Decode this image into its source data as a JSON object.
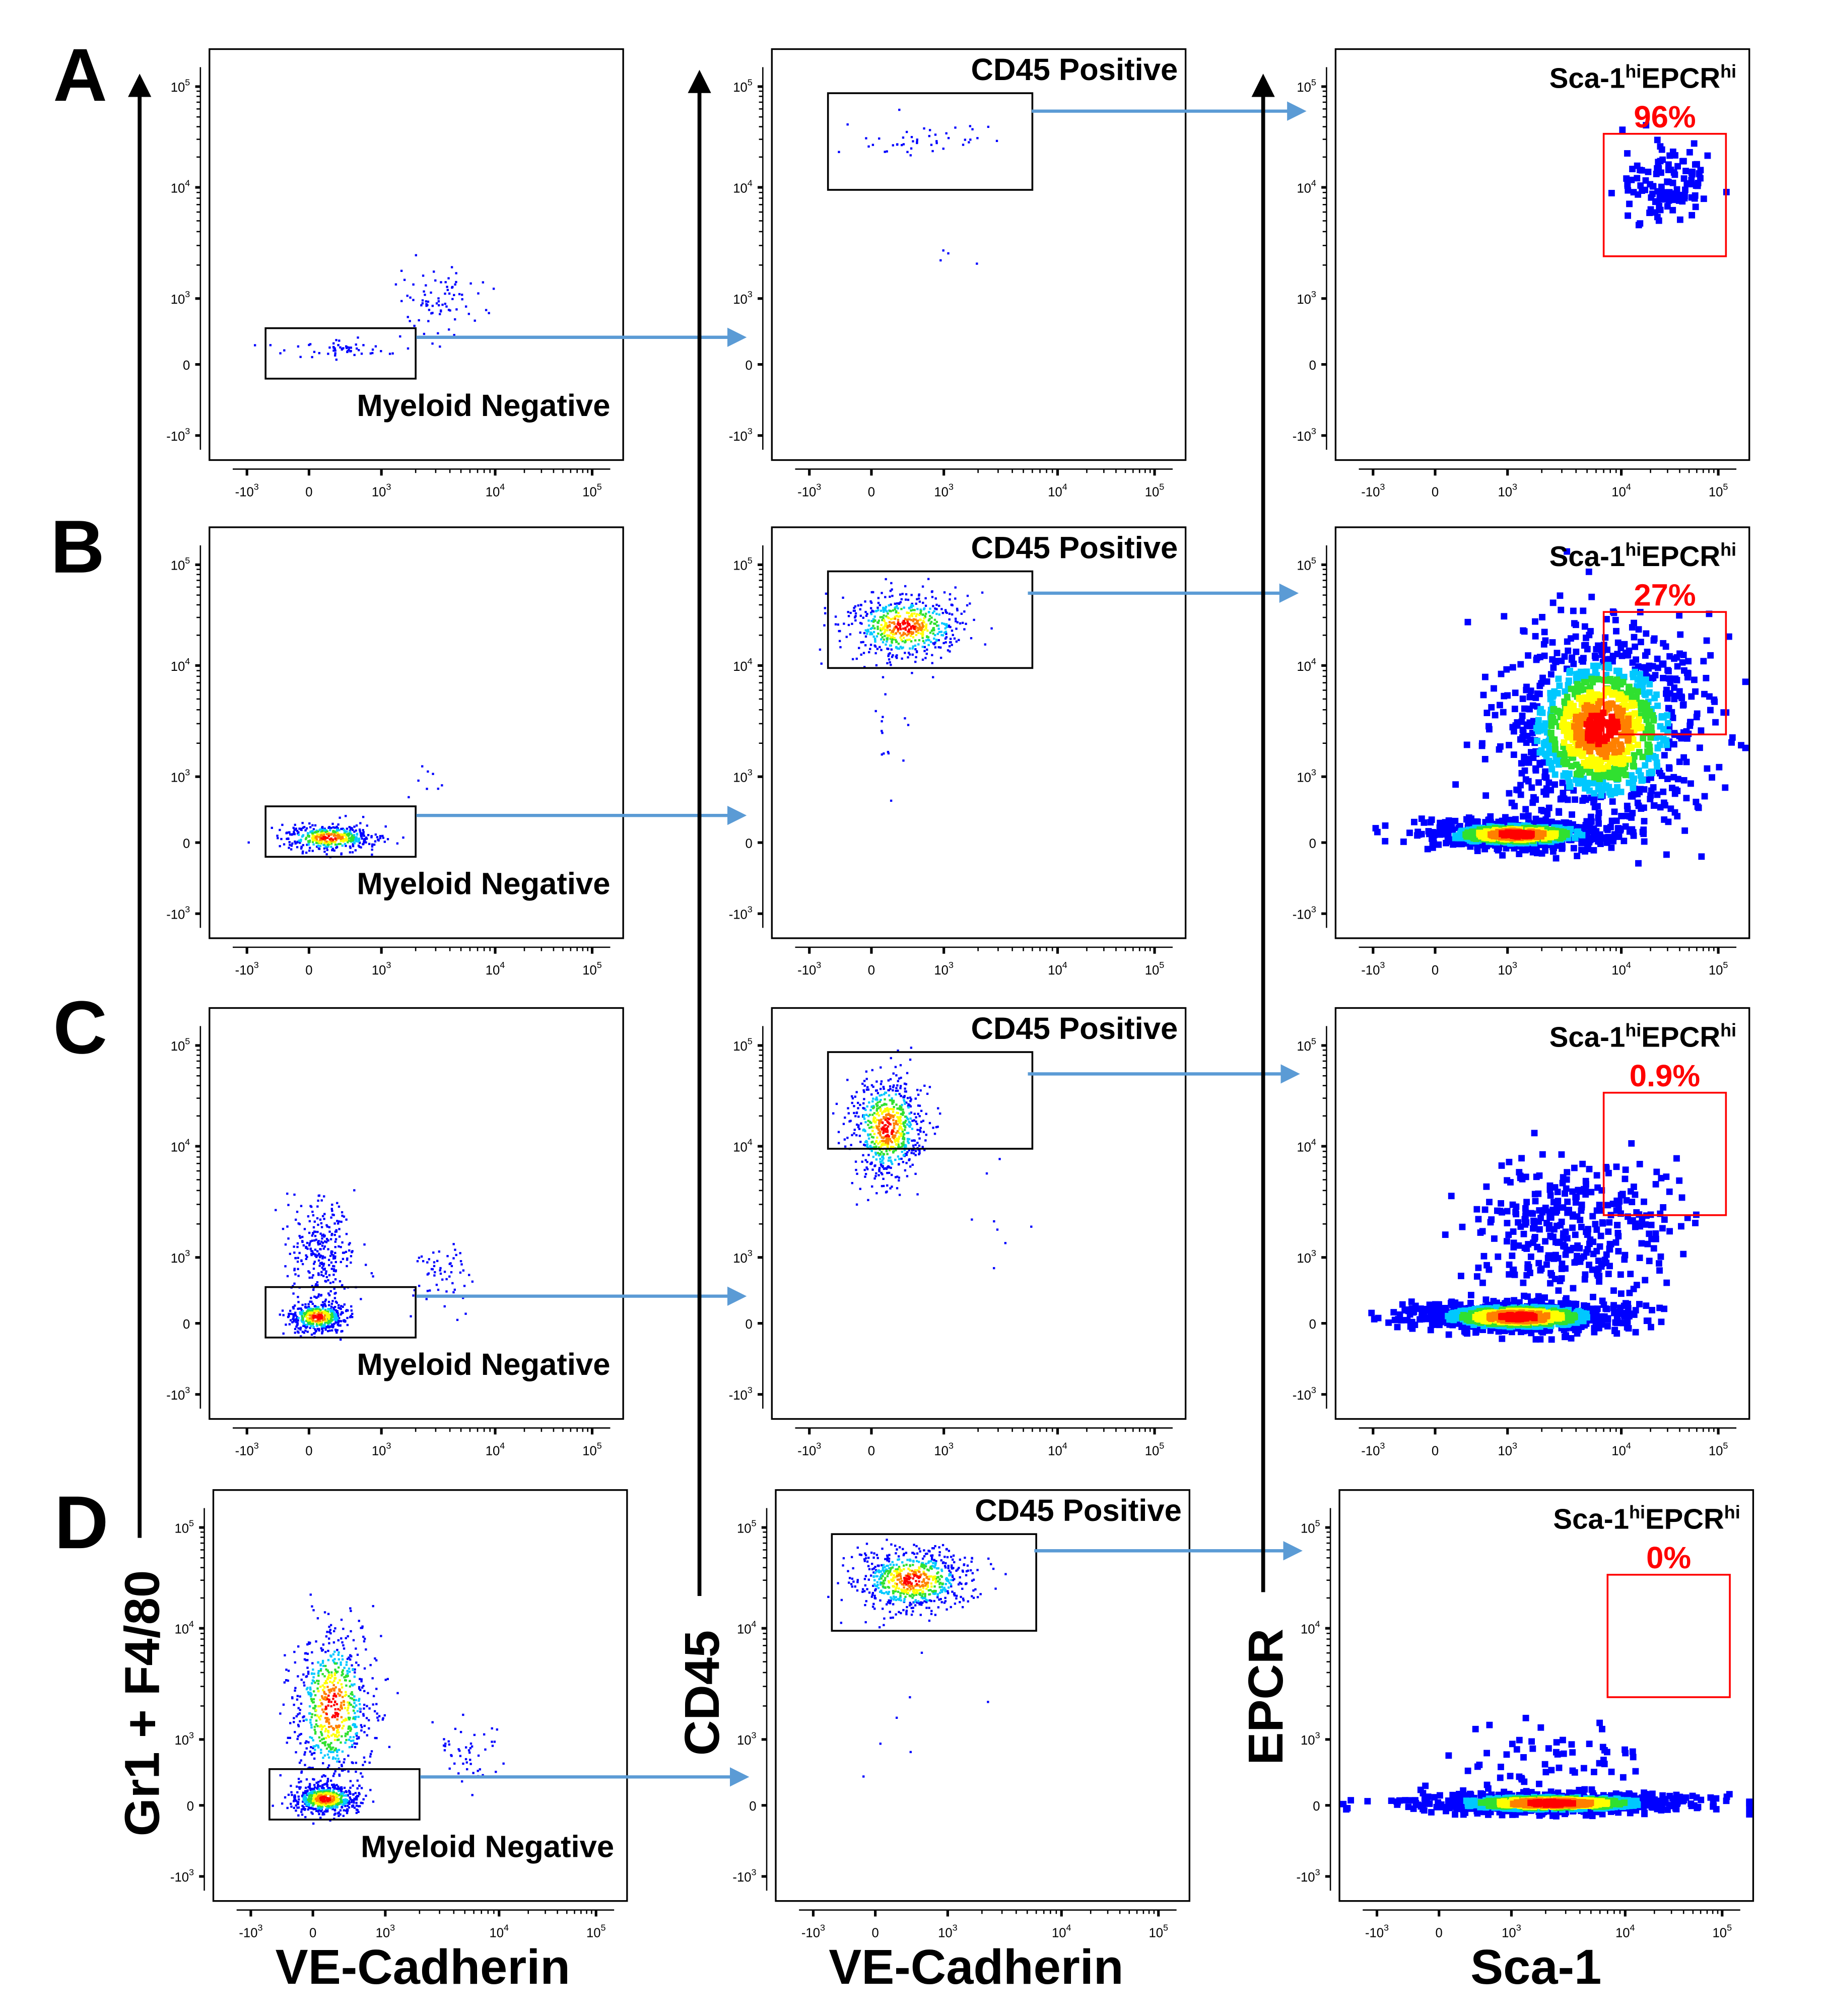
{
  "chart_data": {
    "type": "scatter",
    "row_labels": [
      "A",
      "B",
      "C",
      "D"
    ],
    "axis_titles": {
      "col1_y": "Gr1 + F4/80",
      "col2_y": "CD45",
      "col3_y": "EPCR",
      "col1_x": "VE-Cadherin",
      "col2_x": "VE-Cadherin",
      "col3_x": "Sca-1"
    },
    "scale": "biexponential",
    "x_ticks": [
      {
        "v": -1000,
        "base": "-10",
        "exp": "3"
      },
      {
        "v": 0,
        "base": "0",
        "exp": ""
      },
      {
        "v": 1000,
        "base": "10",
        "exp": "3"
      },
      {
        "v": 10000,
        "base": "10",
        "exp": "4"
      },
      {
        "v": 100000,
        "base": "10",
        "exp": "5"
      }
    ],
    "y_ticks": [
      {
        "v": 100000,
        "base": "10",
        "exp": "5"
      },
      {
        "v": 10000,
        "base": "10",
        "exp": "4"
      },
      {
        "v": 1000,
        "base": "10",
        "exp": "3"
      },
      {
        "v": 0,
        "base": "0",
        "exp": ""
      },
      {
        "v": -1000,
        "base": "-10",
        "exp": "3"
      }
    ],
    "gate_labels": {
      "col1": "Myeloid Negative",
      "col2": "CD45 Positive",
      "col3_parts": [
        "Sca-1",
        "hi",
        "EPCR",
        "hi"
      ]
    },
    "colors": {
      "gate_col1": "#000000",
      "gate_col2": "#000000",
      "gate_col3": "#ff0000",
      "arrow": "#5b9bd5",
      "percent": "#ff0000",
      "density": [
        "#0000ff",
        "#00c8ff",
        "#30e030",
        "#ffff00",
        "#ff8000",
        "#ff0000"
      ]
    },
    "rows": [
      {
        "label": "A",
        "panels": [
          {
            "gate": {
              "x": [
                -700,
                2000
              ],
              "y": [
                -200,
                550
              ]
            },
            "populations": [
              {
                "x_range": [
                  -500,
                  1800
                ],
                "y_range": [
                  100,
                  350
                ],
                "n": 55,
                "dense": false
              },
              {
                "x_range": [
                  1500,
                  7000
                ],
                "y_range": [
                  400,
                  1800
                ],
                "n": 80,
                "dense": false
              }
            ]
          },
          {
            "gate": {
              "x": [
                -700,
                6000
              ],
              "y": [
                9500,
                86000
              ]
            },
            "populations": [
              {
                "x_range": [
                  -400,
                  3000
                ],
                "y_range": [
                  20000,
                  45000
                ],
                "n": 45,
                "dense": false
              },
              {
                "x_range": [
                  500,
                  3000
                ],
                "y_range": [
                  2000,
                  4000
                ],
                "n": 4,
                "dense": false
              }
            ]
          },
          {
            "gate": {
              "x": [
                7000,
                120000
              ],
              "y": [
                2400,
                34000
              ]
            },
            "percent": "96%",
            "populations": [
              {
                "x_range": [
                  10000,
                  80000
                ],
                "y_range": [
                  5000,
                  25000
                ],
                "n": 120,
                "dense": false
              }
            ]
          }
        ]
      },
      {
        "label": "B",
        "panels": [
          {
            "gate": {
              "x": [
                -700,
                2000
              ],
              "y": [
                -200,
                550
              ]
            },
            "populations": [
              {
                "x_range": [
                  -400,
                  900
                ],
                "y_range": [
                  -100,
                  250
                ],
                "n": 450,
                "dense": true
              },
              {
                "x_range": [
                  1500,
                  5000
                ],
                "y_range": [
                  500,
                  2000
                ],
                "n": 8,
                "dense": false
              }
            ]
          },
          {
            "gate": {
              "x": [
                -700,
                6000
              ],
              "y": [
                9500,
                86000
              ]
            },
            "populations": [
              {
                "x_range": [
                  -400,
                  1500
                ],
                "y_range": [
                  12000,
                  50000
                ],
                "n": 600,
                "dense": true
              },
              {
                "x_range": [
                  0,
                  600
                ],
                "y_range": [
                  1200,
                  8000
                ],
                "n": 15,
                "dense": false
              }
            ]
          },
          {
            "gate": {
              "x": [
                7000,
                120000
              ],
              "y": [
                2400,
                34000
              ]
            },
            "percent": "27%",
            "populations": [
              {
                "x_range": [
                  -200,
                  8000
                ],
                "y_range": [
                  -50,
                  300
                ],
                "n": 700,
                "dense": true
              },
              {
                "x_range": [
                  1000,
                  60000
                ],
                "y_range": [
                  300,
                  20000
                ],
                "n": 1100,
                "dense": true
              }
            ]
          }
        ]
      },
      {
        "label": "C",
        "panels": [
          {
            "gate": {
              "x": [
                -700,
                2000
              ],
              "y": [
                -200,
                550
              ]
            },
            "populations": [
              {
                "x_range": [
                  -300,
                  500
                ],
                "y_range": [
                  -100,
                  300
                ],
                "n": 500,
                "dense": true
              },
              {
                "x_range": [
                  -300,
                  600
                ],
                "y_range": [
                  300,
                  3500
                ],
                "n": 280,
                "dense": false
              },
              {
                "x_range": [
                  1800,
                  6000
                ],
                "y_range": [
                  300,
                  1500
                ],
                "n": 60,
                "dense": false
              }
            ]
          },
          {
            "gate": {
              "x": [
                -700,
                6000
              ],
              "y": [
                9500,
                86000
              ]
            },
            "populations": [
              {
                "x_range": [
                  -300,
                  700
                ],
                "y_range": [
                  5000,
                  50000
                ],
                "n": 700,
                "dense": true
              },
              {
                "x_range": [
                  1500,
                  5000
                ],
                "y_range": [
                  500,
                  15000
                ],
                "n": 8,
                "dense": false
              }
            ]
          },
          {
            "gate": {
              "x": [
                7000,
                120000
              ],
              "y": [
                2400,
                34000
              ]
            },
            "percent": "0.9%",
            "populations": [
              {
                "x_range": [
                  -300,
                  10000
                ],
                "y_range": [
                  -100,
                  300
                ],
                "n": 900,
                "dense": true
              },
              {
                "x_range": [
                  500,
                  40000
                ],
                "y_range": [
                  300,
                  8000
                ],
                "n": 350,
                "dense": false
              }
            ]
          }
        ]
      },
      {
        "label": "D",
        "panels": [
          {
            "gate": {
              "x": [
                -700,
                2000
              ],
              "y": [
                -200,
                550
              ]
            },
            "populations": [
              {
                "x_range": [
                  -300,
                  600
                ],
                "y_range": [
                  -100,
                  300
                ],
                "n": 600,
                "dense": true
              },
              {
                "x_range": [
                  -300,
                  800
                ],
                "y_range": [
                  300,
                  10000
                ],
                "n": 700,
                "dense": true
              },
              {
                "x_range": [
                  3000,
                  9000
                ],
                "y_range": [
                  300,
                  1500
                ],
                "n": 50,
                "dense": false
              }
            ]
          },
          {
            "gate": {
              "x": [
                -700,
                6000
              ],
              "y": [
                9500,
                86000
              ]
            },
            "populations": [
              {
                "x_range": [
                  -300,
                  1500
                ],
                "y_range": [
                  15000,
                  60000
                ],
                "n": 700,
                "dense": true
              },
              {
                "x_range": [
                  0,
                  1500
                ],
                "y_range": [
                  400,
                  8000
                ],
                "n": 8,
                "dense": false
              }
            ]
          },
          {
            "gate": {
              "x": [
                7000,
                120000
              ],
              "y": [
                2400,
                34000
              ]
            },
            "percent": "0%",
            "populations": [
              {
                "x_range": [
                  -300,
                  40000
                ],
                "y_range": [
                  -80,
                  150
                ],
                "n": 900,
                "dense": true
              },
              {
                "x_range": [
                  200,
                  20000
                ],
                "y_range": [
                  150,
                  1500
                ],
                "n": 60,
                "dense": false
              }
            ]
          }
        ]
      }
    ]
  }
}
